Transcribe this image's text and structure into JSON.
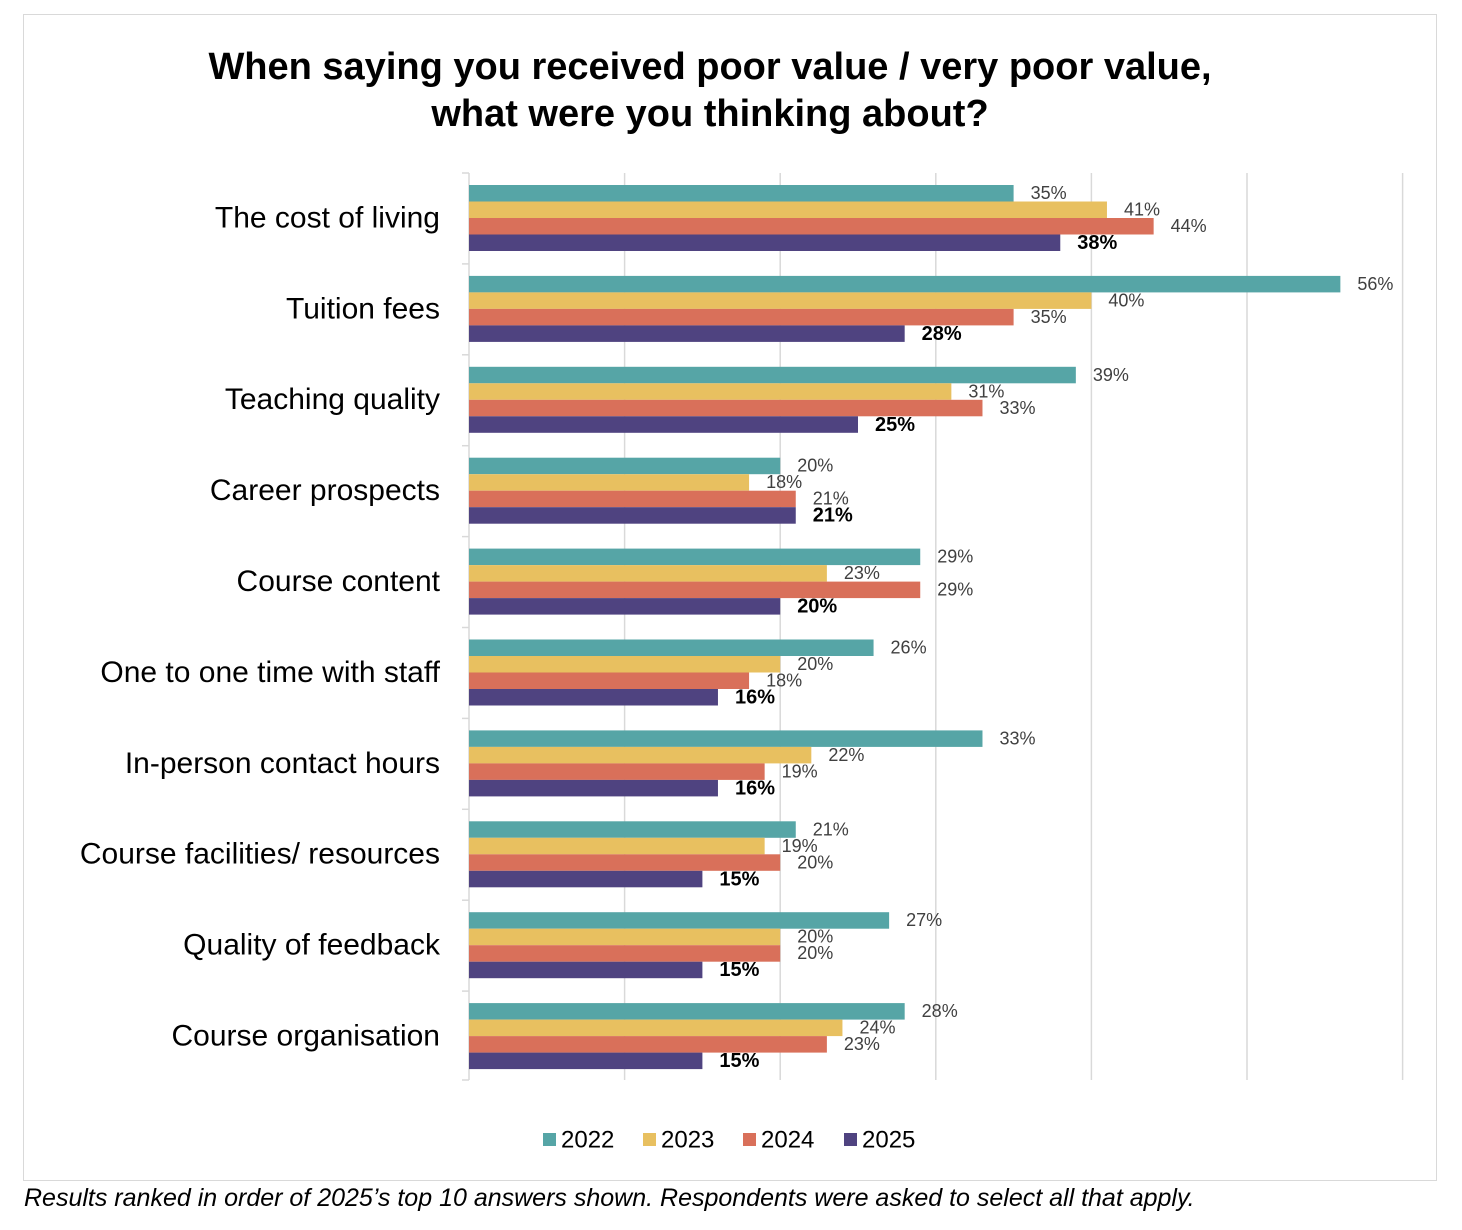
{
  "chart_data": {
    "type": "bar",
    "orientation": "horizontal",
    "title": "When saying you received poor value / very poor value, what were you thinking about?",
    "categories": [
      "The cost of living",
      "Tuition fees",
      "Teaching quality",
      "Career prospects",
      "Course content",
      "One to one time with staff",
      "In-person contact hours",
      "Course facilities/ resources",
      "Quality of feedback",
      "Course organisation"
    ],
    "series": [
      {
        "name": "2022",
        "color": "#56a5a6",
        "values": [
          35,
          56,
          39,
          20,
          29,
          26,
          33,
          21,
          27,
          28
        ]
      },
      {
        "name": "2023",
        "color": "#e8c060",
        "values": [
          41,
          40,
          31,
          18,
          23,
          20,
          22,
          19,
          20,
          24
        ]
      },
      {
        "name": "2024",
        "color": "#d9705a",
        "values": [
          44,
          35,
          33,
          21,
          29,
          18,
          19,
          20,
          20,
          23
        ]
      },
      {
        "name": "2025",
        "color": "#4f4380",
        "values": [
          38,
          28,
          25,
          21,
          20,
          16,
          16,
          15,
          15,
          15
        ]
      }
    ],
    "value_suffix": "%",
    "xlim": [
      0,
      60
    ],
    "gridlines": true,
    "legend_position": "bottom",
    "bold_series": "2025"
  },
  "footnote": "Results ranked in order of 2025’s top 10 answers shown. Respondents were asked to select all that apply."
}
